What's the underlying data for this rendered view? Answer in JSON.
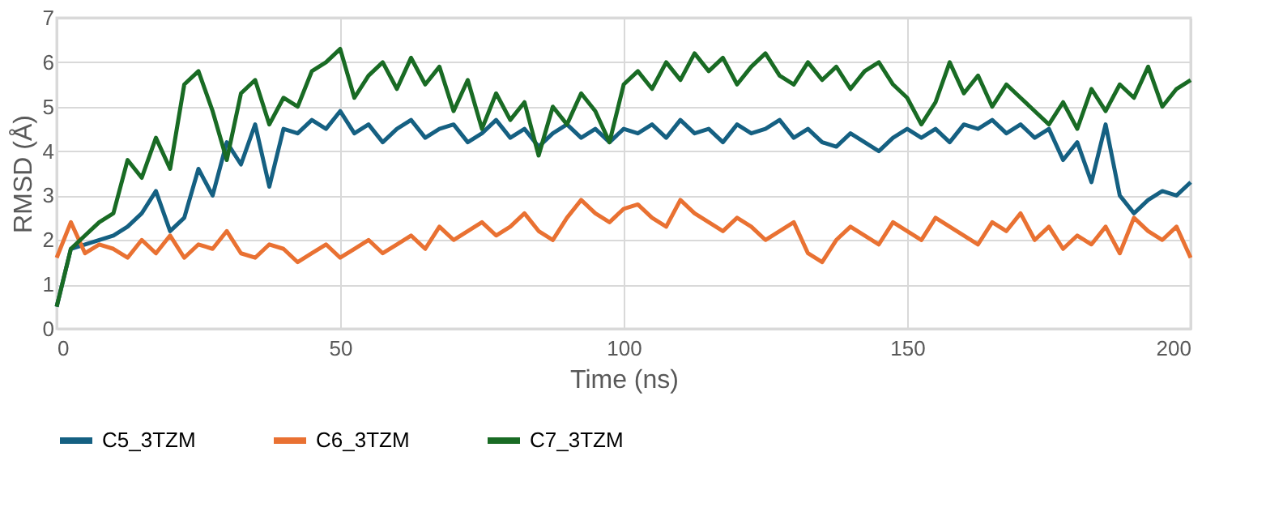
{
  "chart_data": {
    "type": "line",
    "xlabel": "Time (ns)",
    "ylabel": "RMSD (Å)",
    "x": [
      0,
      2.5,
      5,
      7.5,
      10,
      12.5,
      15,
      17.5,
      20,
      22.5,
      25,
      27.5,
      30,
      32.5,
      35,
      37.5,
      40,
      42.5,
      45,
      47.5,
      50,
      52.5,
      55,
      57.5,
      60,
      62.5,
      65,
      67.5,
      70,
      72.5,
      75,
      77.5,
      80,
      82.5,
      85,
      87.5,
      90,
      92.5,
      95,
      97.5,
      100,
      102.5,
      105,
      107.5,
      110,
      112.5,
      115,
      117.5,
      120,
      122.5,
      125,
      127.5,
      130,
      132.5,
      135,
      137.5,
      140,
      142.5,
      145,
      147.5,
      150,
      152.5,
      155,
      157.5,
      160,
      162.5,
      165,
      167.5,
      170,
      172.5,
      175,
      177.5,
      180,
      182.5,
      185,
      187.5,
      190,
      192.5,
      195,
      197.5,
      200
    ],
    "series": [
      {
        "name": "C5_3TZM",
        "color": "#156082",
        "values": [
          0.5,
          1.8,
          1.9,
          2.0,
          2.1,
          2.3,
          2.6,
          3.1,
          2.2,
          2.5,
          3.6,
          3.0,
          4.2,
          3.7,
          4.6,
          3.2,
          4.5,
          4.4,
          4.7,
          4.5,
          4.9,
          4.4,
          4.6,
          4.2,
          4.5,
          4.7,
          4.3,
          4.5,
          4.6,
          4.2,
          4.4,
          4.7,
          4.3,
          4.5,
          4.1,
          4.4,
          4.6,
          4.3,
          4.5,
          4.2,
          4.5,
          4.4,
          4.6,
          4.3,
          4.7,
          4.4,
          4.5,
          4.2,
          4.6,
          4.4,
          4.5,
          4.7,
          4.3,
          4.5,
          4.2,
          4.1,
          4.4,
          4.2,
          4.0,
          4.3,
          4.5,
          4.3,
          4.5,
          4.2,
          4.6,
          4.5,
          4.7,
          4.4,
          4.6,
          4.3,
          4.5,
          3.8,
          4.2,
          3.3,
          4.6,
          3.0,
          2.6,
          2.9,
          3.1,
          3.0,
          3.3
        ]
      },
      {
        "name": "C6_3TZM",
        "color": "#e97132",
        "values": [
          1.6,
          2.4,
          1.7,
          1.9,
          1.8,
          1.6,
          2.0,
          1.7,
          2.1,
          1.6,
          1.9,
          1.8,
          2.2,
          1.7,
          1.6,
          1.9,
          1.8,
          1.5,
          1.7,
          1.9,
          1.6,
          1.8,
          2.0,
          1.7,
          1.9,
          2.1,
          1.8,
          2.3,
          2.0,
          2.2,
          2.4,
          2.1,
          2.3,
          2.6,
          2.2,
          2.0,
          2.5,
          2.9,
          2.6,
          2.4,
          2.7,
          2.8,
          2.5,
          2.3,
          2.9,
          2.6,
          2.4,
          2.2,
          2.5,
          2.3,
          2.0,
          2.2,
          2.4,
          1.7,
          1.5,
          2.0,
          2.3,
          2.1,
          1.9,
          2.4,
          2.2,
          2.0,
          2.5,
          2.3,
          2.1,
          1.9,
          2.4,
          2.2,
          2.6,
          2.0,
          2.3,
          1.8,
          2.1,
          1.9,
          2.3,
          1.7,
          2.5,
          2.2,
          2.0,
          2.3,
          1.6
        ]
      },
      {
        "name": "C7_3TZM",
        "color": "#196b24",
        "values": [
          0.5,
          1.8,
          2.1,
          2.4,
          2.6,
          3.8,
          3.4,
          4.3,
          3.6,
          5.5,
          5.8,
          4.9,
          3.8,
          5.3,
          5.6,
          4.6,
          5.2,
          5.0,
          5.8,
          6.0,
          6.3,
          5.2,
          5.7,
          6.0,
          5.4,
          6.1,
          5.5,
          5.9,
          4.9,
          5.6,
          4.5,
          5.3,
          4.7,
          5.1,
          3.9,
          5.0,
          4.6,
          5.3,
          4.9,
          4.2,
          5.5,
          5.8,
          5.4,
          6.0,
          5.6,
          6.2,
          5.8,
          6.1,
          5.5,
          5.9,
          6.2,
          5.7,
          5.5,
          6.0,
          5.6,
          5.9,
          5.4,
          5.8,
          6.0,
          5.5,
          5.2,
          4.6,
          5.1,
          6.0,
          5.3,
          5.7,
          5.0,
          5.5,
          5.2,
          4.9,
          4.6,
          5.1,
          4.5,
          5.4,
          4.9,
          5.5,
          5.2,
          5.9,
          5.0,
          5.4,
          5.6
        ]
      }
    ],
    "xlim": [
      0,
      200
    ],
    "xticks": [
      0,
      50,
      100,
      150,
      200
    ],
    "ylim": [
      0,
      7
    ],
    "yticks": [
      0,
      1,
      2,
      3,
      4,
      5,
      6,
      7
    ],
    "grid": true,
    "legend": "bottom",
    "line_style": "solid",
    "marker": "none"
  }
}
